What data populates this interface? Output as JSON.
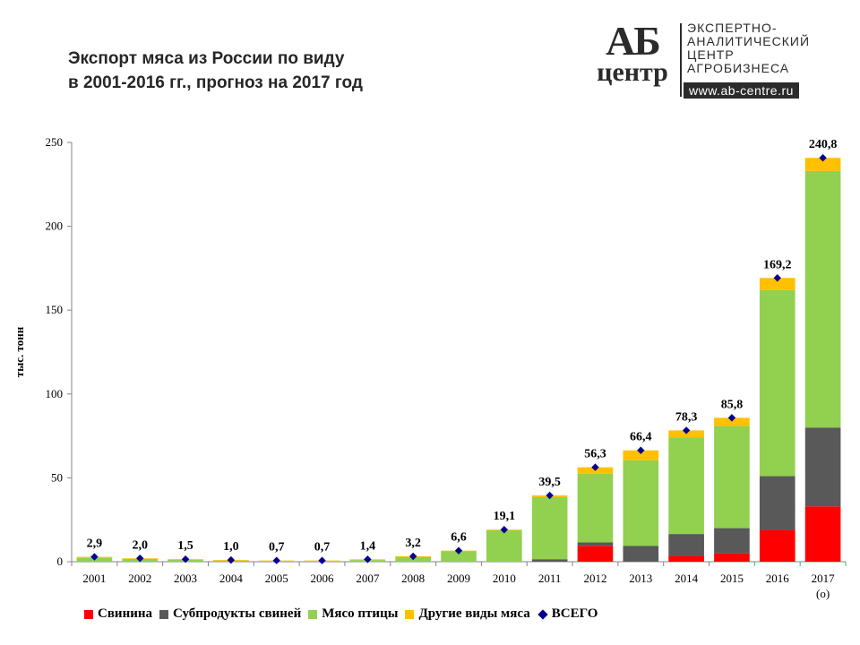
{
  "header": {
    "title_line1": "Экспорт мяса из России по виду",
    "title_line2": "в 2001-2016 гг., прогноз на 2017 год"
  },
  "logo": {
    "mark_top": "АБ",
    "mark_bottom": "центр",
    "text_lines": [
      "ЭКСПЕРТНО-",
      "АНАЛИТИЧЕСКИЙ",
      "ЦЕНТР",
      "АГРОБИЗНЕСА"
    ],
    "url": "www.ab-centre.ru"
  },
  "chart_data": {
    "type": "bar",
    "stacked": true,
    "ylabel": "тыс. тонн",
    "ylim": [
      0,
      250
    ],
    "yticks": [
      0,
      50,
      100,
      150,
      200,
      250
    ],
    "grid": false,
    "legend_position": "bottom",
    "categories": [
      "2001",
      "2002",
      "2003",
      "2004",
      "2005",
      "2006",
      "2007",
      "2008",
      "2009",
      "2010",
      "2011",
      "2012",
      "2013",
      "2014",
      "2015",
      "2016",
      "2017"
    ],
    "category_sublabels": [
      "",
      "",
      "",
      "",
      "",
      "",
      "",
      "",
      "",
      "",
      "",
      "",
      "",
      "",
      "",
      "",
      "(о)"
    ],
    "series": [
      {
        "name": "Свинина",
        "color": "#ff0000",
        "values": [
          0,
          0,
          0,
          0,
          0,
          0,
          0,
          0,
          0,
          0,
          0,
          9.5,
          0,
          3.5,
          5,
          19,
          33
        ]
      },
      {
        "name": "Субпродукты свиней",
        "color": "#595959",
        "values": [
          0,
          0,
          0,
          0,
          0,
          0,
          0,
          0,
          0,
          0,
          1.5,
          2,
          9.5,
          13,
          15,
          32,
          47
        ]
      },
      {
        "name": "Мясо птицы",
        "color": "#92d050",
        "values": [
          2.2,
          1.6,
          1.2,
          0.7,
          0.5,
          0.5,
          1.0,
          3.0,
          6.3,
          18.7,
          37,
          41,
          51,
          57.5,
          61,
          111,
          153
        ]
      },
      {
        "name": "Другие виды мяса",
        "color": "#ffc000",
        "values": [
          0.7,
          0.4,
          0.3,
          0.3,
          0.2,
          0.2,
          0.4,
          0.2,
          0.3,
          0.4,
          1.0,
          3.8,
          5.9,
          4.3,
          4.8,
          7.2,
          7.8
        ]
      }
    ],
    "total": {
      "name": "ВСЕГО",
      "color": "#00008b",
      "values": [
        2.9,
        2.0,
        1.5,
        1.0,
        0.7,
        0.7,
        1.4,
        3.2,
        6.6,
        19.1,
        39.5,
        56.3,
        66.4,
        78.3,
        85.8,
        169.2,
        240.8
      ],
      "labels": [
        "2,9",
        "2,0",
        "1,5",
        "1,0",
        "0,7",
        "0,7",
        "1,4",
        "3,2",
        "6,6",
        "19,1",
        "39,5",
        "56,3",
        "66,4",
        "78,3",
        "85,8",
        "169,2",
        "240,8"
      ]
    }
  }
}
